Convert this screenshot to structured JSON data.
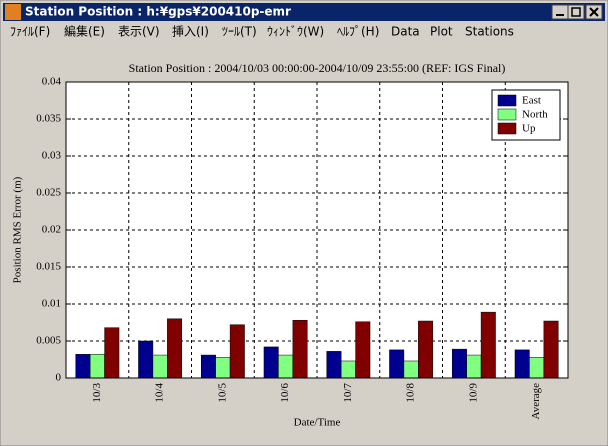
{
  "window": {
    "title": "Station Position : h:¥gps¥200410p-emr",
    "menu": [
      "ﾌｧｲﾙ(F)",
      "編集(E)",
      "表示(V)",
      "挿入(I)",
      "ﾂｰﾙ(T)",
      "ｳｨﾝﾄﾞｳ(W)",
      "ﾍﾙﾌﾟ(H)",
      "Data",
      "Plot",
      "Stations"
    ]
  },
  "chart_data": {
    "type": "bar",
    "title": "Station Position : 2004/10/03 00:00:00-2004/10/09 23:55:00 (REF: IGS Final)",
    "x_label": "Date/Time",
    "y_label": "Position RMS Error (m)",
    "categories": [
      "10/3",
      "10/4",
      "10/5",
      "10/6",
      "10/7",
      "10/8",
      "10/9",
      "Average"
    ],
    "series": [
      {
        "name": "East",
        "color": "#00008f",
        "values": [
          0.0032,
          0.005,
          0.0031,
          0.0042,
          0.0036,
          0.0038,
          0.0039,
          0.0038
        ]
      },
      {
        "name": "North",
        "color": "#80ff80",
        "values": [
          0.0032,
          0.0031,
          0.0028,
          0.0031,
          0.0023,
          0.0023,
          0.0031,
          0.0028
        ]
      },
      {
        "name": "Up",
        "color": "#800000",
        "values": [
          0.0068,
          0.008,
          0.0072,
          0.0078,
          0.0076,
          0.0077,
          0.0089,
          0.0077
        ]
      }
    ],
    "ylim": [
      0,
      0.04
    ],
    "yticks": [
      0,
      0.005,
      0.01,
      0.015,
      0.02,
      0.025,
      0.03,
      0.035,
      0.04
    ],
    "grid": true,
    "legend": "upper right"
  }
}
